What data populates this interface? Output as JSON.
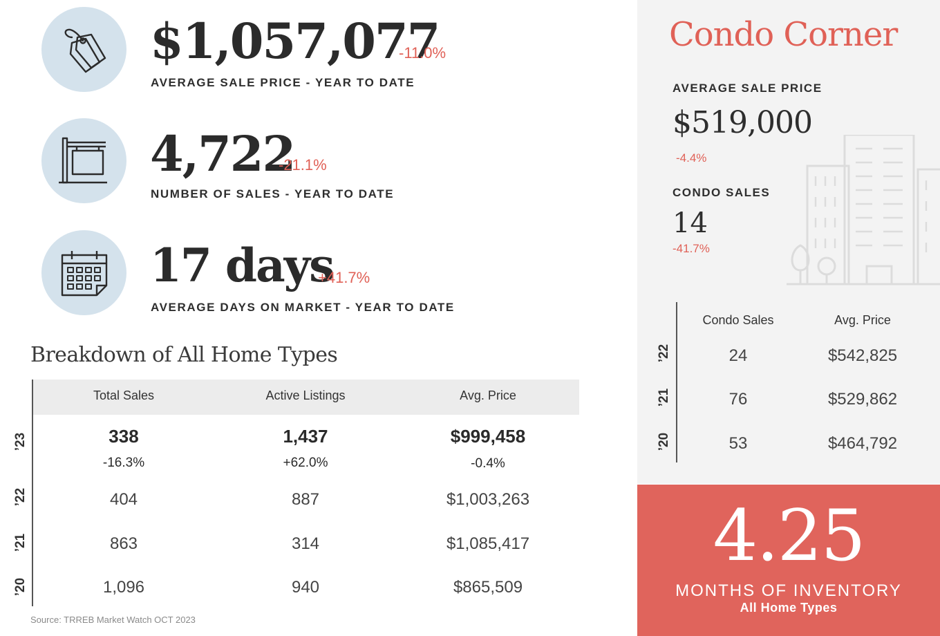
{
  "stats": {
    "avg_price": {
      "value": "$1,057,077",
      "change": "-11.0%",
      "label": "AVERAGE SALE PRICE - YEAR TO DATE",
      "icon": "price-tag-icon"
    },
    "num_sales": {
      "value": "4,722",
      "change": "-21.1%",
      "label": "NUMBER OF SALES - YEAR TO DATE",
      "icon": "for-sale-sign-icon"
    },
    "days": {
      "value": "17 days",
      "change": "+41.7%",
      "label": "AVERAGE DAYS ON MARKET - YEAR TO DATE",
      "icon": "calendar-icon"
    }
  },
  "breakdown": {
    "title": "Breakdown of All Home Types",
    "headers": [
      "Total Sales",
      "Active Listings",
      "Avg. Price"
    ],
    "rows": [
      {
        "year": "’23",
        "total_sales": "338",
        "active_listings": "1,437",
        "avg_price": "$999,458",
        "total_sales_change": "-16.3%",
        "active_listings_change": "+62.0%",
        "avg_price_change": "-0.4%"
      },
      {
        "year": "’22",
        "total_sales": "404",
        "active_listings": "887",
        "avg_price": "$1,003,263"
      },
      {
        "year": "’21",
        "total_sales": "863",
        "active_listings": "314",
        "avg_price": "$1,085,417"
      },
      {
        "year": "’20",
        "total_sales": "1,096",
        "active_listings": "940",
        "avg_price": "$865,509"
      }
    ]
  },
  "source": "Source: TRREB Market Watch OCT 2023",
  "condo": {
    "title": "Condo Corner",
    "avg_price_label": "AVERAGE SALE PRICE",
    "avg_price": "$519,000",
    "avg_price_change": "-4.4%",
    "sales_label": "CONDO SALES",
    "sales": "14",
    "sales_change": "-41.7%",
    "icon": "city-buildings-icon",
    "table": {
      "headers": [
        "Condo Sales",
        "Avg. Price"
      ],
      "rows": [
        {
          "year": "’22",
          "sales": "24",
          "avg_price": "$542,825"
        },
        {
          "year": "’21",
          "sales": "76",
          "avg_price": "$529,862"
        },
        {
          "year": "’20",
          "sales": "53",
          "avg_price": "$464,792"
        }
      ]
    }
  },
  "inventory": {
    "value": "4.25",
    "label": "MONTHS OF INVENTORY",
    "sublabel": "All Home Types"
  },
  "colors": {
    "accent_red": "#e06157",
    "inventory_bg": "#e0645c",
    "icon_circle": "#d4e2ec",
    "panel_bg": "#f3f3f3",
    "table_header_bg": "#ececec"
  }
}
